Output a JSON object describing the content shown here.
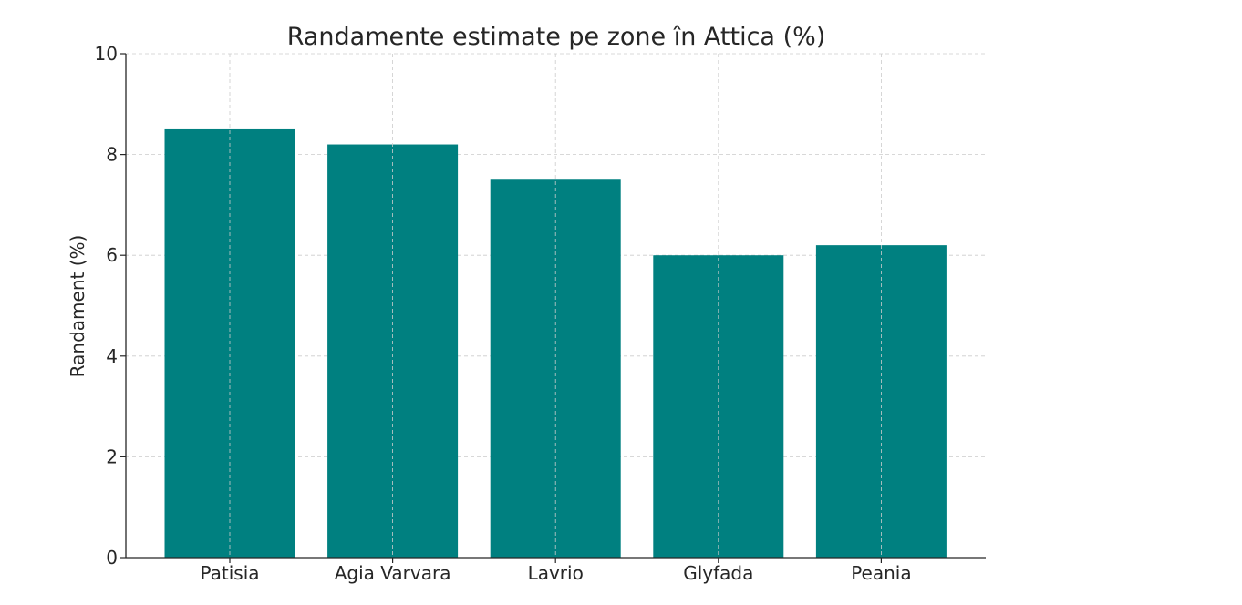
{
  "chart_data": {
    "type": "bar",
    "title": "Randamente estimate pe zone în Attica (%)",
    "xlabel": "",
    "ylabel": "Randament (%)",
    "categories": [
      "Patisia",
      "Agia Varvara",
      "Lavrio",
      "Glyfada",
      "Peania"
    ],
    "values": [
      8.5,
      8.2,
      7.5,
      6.0,
      6.2
    ],
    "ylim": [
      0,
      10
    ],
    "yticks": [
      "0",
      "2",
      "4",
      "6",
      "8",
      "10"
    ],
    "grid": true,
    "bar_color": "#008080"
  }
}
